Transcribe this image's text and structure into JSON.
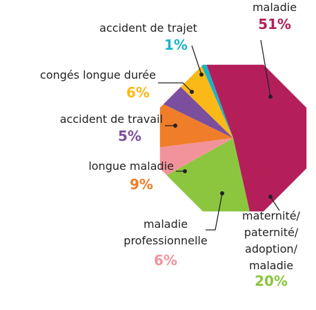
{
  "chart_data": {
    "type": "pie",
    "categories": [
      "maladie",
      "maternité/paternité/adoption/maladie",
      "maladie professionnelle",
      "longue maladie",
      "accident de travail",
      "congés longue durée",
      "accident de trajet"
    ],
    "values": [
      51,
      20,
      6,
      9,
      5,
      6,
      1
    ],
    "value_labels": [
      "51%",
      "20%",
      "6%",
      "9%",
      "5%",
      "6%",
      "1%"
    ],
    "colors": [
      "#b41f5a",
      "#8cc63f",
      "#f2939c",
      "#f07d2a",
      "#7b4f9e",
      "#fbb918",
      "#1ab3c8"
    ]
  }
}
